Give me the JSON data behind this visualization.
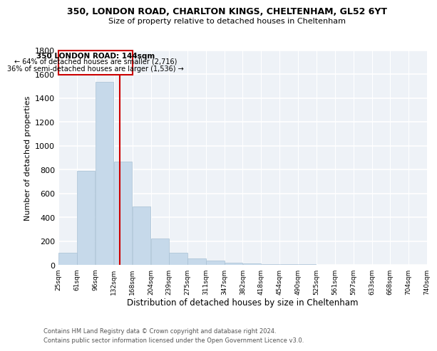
{
  "title": "350, LONDON ROAD, CHARLTON KINGS, CHELTENHAM, GL52 6YT",
  "subtitle": "Size of property relative to detached houses in Cheltenham",
  "xlabel": "Distribution of detached houses by size in Cheltenham",
  "ylabel": "Number of detached properties",
  "annotation_title": "350 LONDON ROAD: 144sqm",
  "annotation_line1": "← 64% of detached houses are smaller (2,716)",
  "annotation_line2": "36% of semi-detached houses are larger (1,536) →",
  "property_size_sqm": 144,
  "bin_edges": [
    25,
    61,
    96,
    132,
    168,
    204,
    239,
    275,
    311,
    347,
    382,
    418,
    454,
    490,
    525,
    561,
    597,
    633,
    668,
    704,
    740
  ],
  "bin_counts": [
    100,
    790,
    1540,
    870,
    490,
    220,
    100,
    55,
    35,
    20,
    15,
    10,
    8,
    5,
    4,
    3,
    2,
    2,
    1,
    1
  ],
  "bar_color": "#c6d9ea",
  "bar_edge_color": "#a8c0d4",
  "marker_color": "#cc0000",
  "ylim": [
    0,
    1800
  ],
  "yticks": [
    0,
    200,
    400,
    600,
    800,
    1000,
    1200,
    1400,
    1600,
    1800
  ],
  "footnote1": "Contains HM Land Registry data © Crown copyright and database right 2024.",
  "footnote2": "Contains public sector information licensed under the Open Government Licence v3.0.",
  "bg_color": "#eef2f7"
}
